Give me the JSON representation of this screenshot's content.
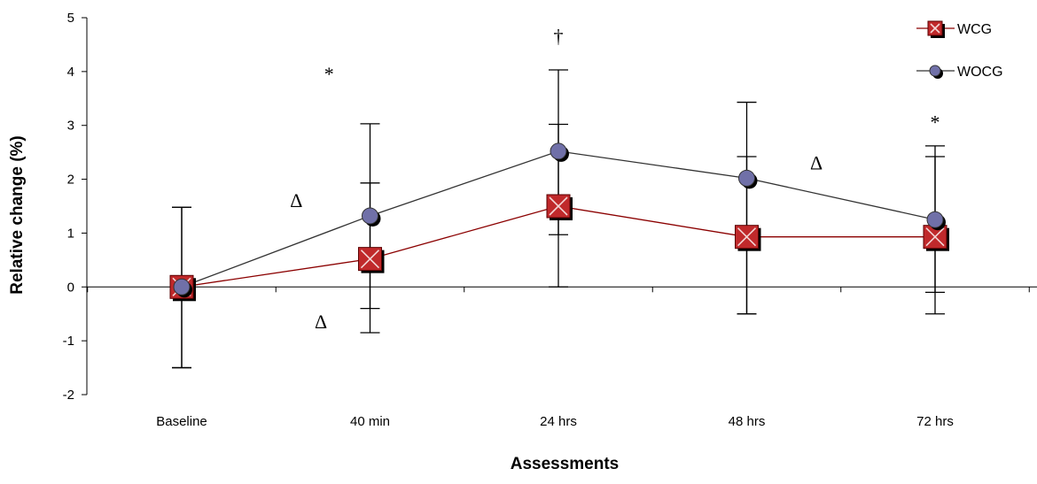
{
  "chart_data": {
    "type": "line",
    "title": "",
    "xlabel": "Assessments",
    "ylabel": "Relative change (%)",
    "ylim": [
      -2,
      5
    ],
    "yticks": [
      -2,
      -1,
      0,
      1,
      2,
      3,
      4,
      5
    ],
    "categories": [
      "Baseline",
      "40 min",
      "24 hrs",
      "48 hrs",
      "72 hrs"
    ],
    "grid": false,
    "legend_position": "top-right",
    "series": [
      {
        "name": "WCG",
        "color": "#8B0000",
        "marker": "square-x",
        "marker_color": "#C0292B",
        "values": [
          0,
          0.52,
          1.5,
          0.93,
          0.93
        ],
        "error_low": [
          -1.5,
          -0.4,
          0.97,
          -0.5,
          -0.1
        ],
        "error_high": [
          1.48,
          1.93,
          3.02,
          2.42,
          2.42
        ]
      },
      {
        "name": "WOCG",
        "color": "#333333",
        "marker": "circle",
        "marker_color": "#7070A8",
        "values": [
          0,
          1.32,
          2.52,
          2.02,
          1.25
        ],
        "error_low": [
          -1.5,
          -0.85,
          0,
          -0.5,
          -0.5
        ],
        "error_high": [
          1.48,
          3.03,
          4.03,
          3.43,
          2.62
        ]
      }
    ],
    "annotations": [
      {
        "text": "*",
        "category": "40 min",
        "offset": -0.5,
        "y": 3.95
      },
      {
        "text": "Δ",
        "category": "40 min",
        "offset": -0.9,
        "y": 1.6
      },
      {
        "text": "Δ",
        "category": "40 min",
        "offset": -0.6,
        "y": -0.65
      },
      {
        "text": "†",
        "category": "24 hrs",
        "offset": 0,
        "y": 4.65
      },
      {
        "text": "Δ",
        "category": "48 hrs",
        "offset": 0.85,
        "y": 2.3
      },
      {
        "text": "*",
        "category": "72 hrs",
        "offset": 0,
        "y": 3.05
      }
    ]
  }
}
